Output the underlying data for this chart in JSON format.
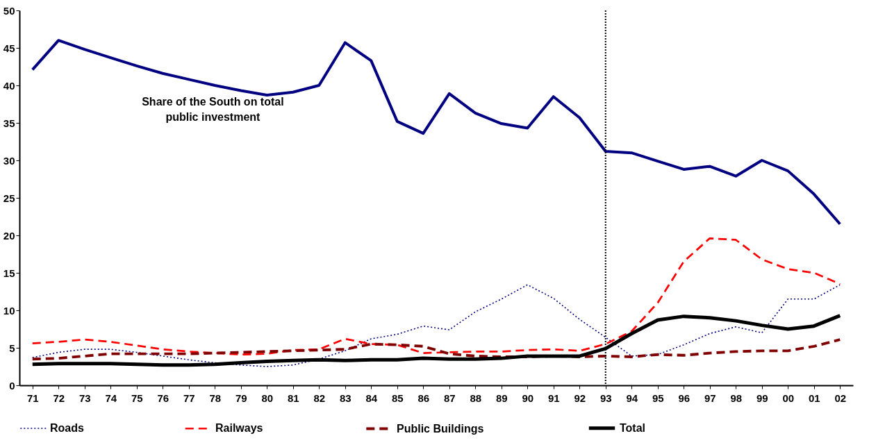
{
  "chart_data": {
    "type": "line",
    "categories": [
      "71",
      "72",
      "73",
      "74",
      "75",
      "76",
      "77",
      "78",
      "79",
      "80",
      "81",
      "82",
      "83",
      "84",
      "85",
      "86",
      "87",
      "88",
      "89",
      "90",
      "91",
      "92",
      "93",
      "94",
      "95",
      "96",
      "97",
      "98",
      "99",
      "00",
      "01",
      "02"
    ],
    "series": [
      {
        "color": "#000080",
        "line_style": "solid",
        "values": [
          42.1,
          46,
          44.8,
          43.7,
          42.6,
          41.6,
          40.8,
          40,
          39.3,
          38.7,
          39.1,
          40,
          45.7,
          43.3,
          35.2,
          33.6,
          38.9,
          36.3,
          34.9,
          34.3,
          38.5,
          35.7,
          31.2,
          31,
          29.9,
          28.8,
          29.2,
          27.9,
          30,
          28.6,
          25.5,
          21.5
        ]
      },
      {
        "name": "Roads",
        "color": "#000080",
        "line_style": "dotted",
        "values": [
          3.7,
          4.4,
          4.8,
          4.8,
          4.4,
          3.9,
          3.4,
          3,
          2.7,
          2.5,
          2.7,
          3.5,
          4.6,
          6.2,
          6.8,
          7.9,
          7.4,
          9.8,
          11.5,
          13.4,
          11.6,
          8.8,
          6.4,
          3.9,
          4.1,
          5.4,
          6.9,
          7.8,
          7,
          11.5,
          11.5,
          13.4
        ]
      },
      {
        "name": "Railways",
        "color": "#ff0000",
        "line_style": "dashed",
        "values": [
          5.6,
          5.8,
          6.1,
          5.8,
          5.3,
          4.8,
          4.5,
          4.3,
          4.1,
          4.2,
          4.7,
          4.8,
          6.2,
          5.5,
          5.4,
          4.3,
          4.4,
          4.5,
          4.5,
          4.7,
          4.8,
          4.6,
          5.5,
          7.2,
          11,
          16.5,
          19.6,
          19.4,
          16.8,
          15.5,
          15,
          13.5
        ]
      },
      {
        "name": "Public Buildings",
        "color": "#800000",
        "line_style": "dashed",
        "values": [
          3.5,
          3.6,
          3.9,
          4.2,
          4.2,
          4.2,
          4.2,
          4.3,
          4.4,
          4.5,
          4.6,
          4.7,
          4.8,
          5.5,
          5.4,
          5.2,
          4.2,
          3.9,
          3.8,
          3.8,
          3.9,
          3.8,
          3.9,
          3.8,
          4.1,
          4,
          4.3,
          4.5,
          4.6,
          4.6,
          5.2,
          6.1
        ]
      },
      {
        "name": "Total",
        "color": "#000000",
        "line_style": "solid",
        "values": [
          2.8,
          2.9,
          2.9,
          2.9,
          2.8,
          2.7,
          2.7,
          2.8,
          3,
          3.2,
          3.3,
          3.4,
          3.3,
          3.4,
          3.4,
          3.6,
          3.5,
          3.5,
          3.6,
          3.9,
          3.9,
          3.9,
          4.9,
          6.9,
          8.7,
          9.2,
          9,
          8.6,
          8,
          7.5,
          7.9,
          9.3
        ]
      }
    ],
    "ylim": [
      0,
      50
    ],
    "yticks": [
      0,
      5,
      10,
      15,
      20,
      25,
      30,
      35,
      40,
      45,
      50
    ],
    "grid": false,
    "legend": "bottom",
    "marker": "none",
    "ref_lines": [
      {
        "axis": "x",
        "value": "93",
        "line_style": "dotted",
        "color": "#000000"
      }
    ],
    "annotations": [
      "Share of the South on total\npublic investment"
    ]
  }
}
